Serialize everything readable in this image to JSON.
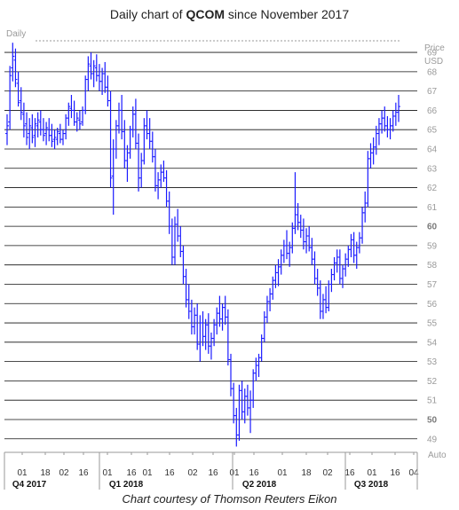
{
  "title": {
    "prefix": "Daily chart of ",
    "ticker": "QCOM",
    "suffix": " since November 2017"
  },
  "caption": "Chart courtesy of Thomson Reuters Eikon",
  "chart_data": {
    "type": "ohlc",
    "periodicity_label": "Daily",
    "price_label": "Price",
    "currency_label": "USD",
    "scale_mode": "Auto",
    "ylim": [
      48.3,
      69.6
    ],
    "y_ticks": [
      49,
      50,
      51,
      52,
      53,
      54,
      55,
      56,
      57,
      58,
      59,
      60,
      61,
      62,
      63,
      64,
      65,
      66,
      67,
      68,
      69
    ],
    "y_bold_ticks": [
      50,
      60
    ],
    "grid": "horizontal",
    "date_ticks": [
      "01",
      "18",
      "02",
      "16",
      "01",
      "16",
      "01",
      "16",
      "02",
      "16",
      "01",
      "16",
      "01",
      "18",
      "02",
      "16",
      "01",
      "16",
      "04"
    ],
    "quarters": [
      "Q4 2017",
      "Q1 2018",
      "Q2 2018",
      "Q3 2018"
    ],
    "bar_color": "#1a1aff",
    "series": [
      {
        "values": [
          [
            64.8,
            65.8,
            64.2,
            65.2
          ],
          [
            65.4,
            68.3,
            65.0,
            67.8
          ],
          [
            68.2,
            69.5,
            67.5,
            68.8
          ],
          [
            68.6,
            69.2,
            67.2,
            67.6
          ],
          [
            67.4,
            68.0,
            66.2,
            66.4
          ],
          [
            66.5,
            67.2,
            65.5,
            65.9
          ],
          [
            65.8,
            66.4,
            64.6,
            65.2
          ],
          [
            65.3,
            65.9,
            64.2,
            64.6
          ],
          [
            64.8,
            65.6,
            64.0,
            65.2
          ],
          [
            65.1,
            65.8,
            64.3,
            64.6
          ],
          [
            64.7,
            65.6,
            64.1,
            65.3
          ],
          [
            65.2,
            65.9,
            64.6,
            65.5
          ],
          [
            65.4,
            66.0,
            64.7,
            65.0
          ],
          [
            65.0,
            65.6,
            64.4,
            64.7
          ],
          [
            64.8,
            65.4,
            64.2,
            65.1
          ],
          [
            65.0,
            65.6,
            64.4,
            64.7
          ],
          [
            64.7,
            65.3,
            64.1,
            64.4
          ],
          [
            64.5,
            65.0,
            64.0,
            64.6
          ],
          [
            64.5,
            65.1,
            64.2,
            64.9
          ],
          [
            64.8,
            65.3,
            64.3,
            64.5
          ],
          [
            64.5,
            65.0,
            64.2,
            64.8
          ],
          [
            64.8,
            65.8,
            64.5,
            65.6
          ],
          [
            65.6,
            66.4,
            65.2,
            66.2
          ],
          [
            66.1,
            66.8,
            65.6,
            66.0
          ],
          [
            66.0,
            66.5,
            65.2,
            65.4
          ],
          [
            65.4,
            65.9,
            64.9,
            65.6
          ],
          [
            65.5,
            66.0,
            65.0,
            65.3
          ],
          [
            65.4,
            66.2,
            65.2,
            66.0
          ],
          [
            66.0,
            67.8,
            65.8,
            67.6
          ],
          [
            67.6,
            68.8,
            67.0,
            68.4
          ],
          [
            68.3,
            69.0,
            67.6,
            67.9
          ],
          [
            67.9,
            68.6,
            67.2,
            68.3
          ],
          [
            68.2,
            68.9,
            67.5,
            67.8
          ],
          [
            67.8,
            68.4,
            67.0,
            67.5
          ],
          [
            67.5,
            68.2,
            66.8,
            67.9
          ],
          [
            67.9,
            68.5,
            66.9,
            67.2
          ],
          [
            67.2,
            67.8,
            66.2,
            66.5
          ],
          [
            66.5,
            67.0,
            62.0,
            62.5
          ],
          [
            62.6,
            64.5,
            60.6,
            64.0
          ],
          [
            64.0,
            65.5,
            63.5,
            65.2
          ],
          [
            65.2,
            66.4,
            64.8,
            66.0
          ],
          [
            66.0,
            66.8,
            64.5,
            64.9
          ],
          [
            64.9,
            65.5,
            63.0,
            63.4
          ],
          [
            63.4,
            64.2,
            62.3,
            63.8
          ],
          [
            63.8,
            65.2,
            63.5,
            65.0
          ],
          [
            65.0,
            66.2,
            64.6,
            65.8
          ],
          [
            65.8,
            66.6,
            64.0,
            64.3
          ],
          [
            64.3,
            64.8,
            61.8,
            62.5
          ],
          [
            62.5,
            63.8,
            62.0,
            63.4
          ],
          [
            63.4,
            65.6,
            63.2,
            65.2
          ],
          [
            65.2,
            66.0,
            64.5,
            64.8
          ],
          [
            64.8,
            65.6,
            64.0,
            64.4
          ],
          [
            64.4,
            64.9,
            63.3,
            63.6
          ],
          [
            63.6,
            64.0,
            61.8,
            62.1
          ],
          [
            62.1,
            62.8,
            61.4,
            62.4
          ],
          [
            62.4,
            63.2,
            62.0,
            62.8
          ],
          [
            62.8,
            63.4,
            62.3,
            62.5
          ],
          [
            62.5,
            62.9,
            61.0,
            61.3
          ],
          [
            61.3,
            61.8,
            59.6,
            60.0
          ],
          [
            60.0,
            60.4,
            58.0,
            58.4
          ],
          [
            58.4,
            60.5,
            58.0,
            60.1
          ],
          [
            60.1,
            60.9,
            59.2,
            59.5
          ],
          [
            59.5,
            60.0,
            58.4,
            58.7
          ],
          [
            58.7,
            59.0,
            57.0,
            57.4
          ],
          [
            57.4,
            57.8,
            55.8,
            56.2
          ],
          [
            56.2,
            57.0,
            55.2,
            55.6
          ],
          [
            55.6,
            56.2,
            54.4,
            54.8
          ],
          [
            54.8,
            55.8,
            54.4,
            55.4
          ],
          [
            55.4,
            56.0,
            53.6,
            53.9
          ],
          [
            53.9,
            55.4,
            53.0,
            55.0
          ],
          [
            55.0,
            55.6,
            53.8,
            54.3
          ],
          [
            54.3,
            55.2,
            53.6,
            54.9
          ],
          [
            54.9,
            55.5,
            53.4,
            53.8
          ],
          [
            53.8,
            54.5,
            53.1,
            54.2
          ],
          [
            54.2,
            55.2,
            53.8,
            54.9
          ],
          [
            54.9,
            55.8,
            54.4,
            55.5
          ],
          [
            55.5,
            56.4,
            54.8,
            55.2
          ],
          [
            55.2,
            56.0,
            54.6,
            55.8
          ],
          [
            55.8,
            56.4,
            54.9,
            55.3
          ],
          [
            55.3,
            55.7,
            52.8,
            53.1
          ],
          [
            53.1,
            53.4,
            51.2,
            51.6
          ],
          [
            51.6,
            51.9,
            49.8,
            50.2
          ],
          [
            50.2,
            50.6,
            48.6,
            49.2
          ],
          [
            49.2,
            51.8,
            48.9,
            51.5
          ],
          [
            51.5,
            52.0,
            50.0,
            50.4
          ],
          [
            50.4,
            51.6,
            49.8,
            51.2
          ],
          [
            51.2,
            51.8,
            50.2,
            50.6
          ],
          [
            50.6,
            51.5,
            49.3,
            51.0
          ],
          [
            51.0,
            52.6,
            50.6,
            52.4
          ],
          [
            52.4,
            53.2,
            52.0,
            52.8
          ],
          [
            52.8,
            53.4,
            52.2,
            53.2
          ],
          [
            53.2,
            54.4,
            53.0,
            54.2
          ],
          [
            54.2,
            55.6,
            54.0,
            55.3
          ],
          [
            55.3,
            56.4,
            55.0,
            56.1
          ],
          [
            56.1,
            56.8,
            55.6,
            56.5
          ],
          [
            56.5,
            57.4,
            56.2,
            57.2
          ],
          [
            57.2,
            58.0,
            56.8,
            57.6
          ],
          [
            57.6,
            58.3,
            56.9,
            57.9
          ],
          [
            57.9,
            58.8,
            57.5,
            58.5
          ],
          [
            58.5,
            59.3,
            58.1,
            59.0
          ],
          [
            59.0,
            59.8,
            58.3,
            58.6
          ],
          [
            58.6,
            59.2,
            57.9,
            58.9
          ],
          [
            58.9,
            60.2,
            58.6,
            59.9
          ],
          [
            59.9,
            62.8,
            59.6,
            60.6
          ],
          [
            60.6,
            61.2,
            59.8,
            60.2
          ],
          [
            60.2,
            60.6,
            59.4,
            59.8
          ],
          [
            59.8,
            60.4,
            58.8,
            59.2
          ],
          [
            59.2,
            59.9,
            58.6,
            59.5
          ],
          [
            59.5,
            60.0,
            58.7,
            58.9
          ],
          [
            58.9,
            59.4,
            58.0,
            58.3
          ],
          [
            58.3,
            58.7,
            57.0,
            57.3
          ],
          [
            57.3,
            57.8,
            56.4,
            56.8
          ],
          [
            56.8,
            57.2,
            55.2,
            55.6
          ],
          [
            55.6,
            56.5,
            55.2,
            56.2
          ],
          [
            56.2,
            56.9,
            55.5,
            55.8
          ],
          [
            55.8,
            57.2,
            55.6,
            57.0
          ],
          [
            57.0,
            57.8,
            56.6,
            57.5
          ],
          [
            57.5,
            58.4,
            57.2,
            58.1
          ],
          [
            58.1,
            58.8,
            57.6,
            58.4
          ],
          [
            58.4,
            58.8,
            57.0,
            57.3
          ],
          [
            57.3,
            58.0,
            56.8,
            57.8
          ],
          [
            57.8,
            58.6,
            57.4,
            58.3
          ],
          [
            58.3,
            59.0,
            57.9,
            58.8
          ],
          [
            58.8,
            59.6,
            58.4,
            59.3
          ],
          [
            59.3,
            59.7,
            58.1,
            58.5
          ],
          [
            58.5,
            59.2,
            57.8,
            58.9
          ],
          [
            58.9,
            59.7,
            58.6,
            59.4
          ],
          [
            59.4,
            61.0,
            59.1,
            60.7
          ],
          [
            60.7,
            61.8,
            60.2,
            61.2
          ],
          [
            61.2,
            63.9,
            61.0,
            63.5
          ],
          [
            63.5,
            64.3,
            63.0,
            63.8
          ],
          [
            63.8,
            64.6,
            63.2,
            64.1
          ],
          [
            64.1,
            65.2,
            63.7,
            64.8
          ],
          [
            64.8,
            65.6,
            64.2,
            65.3
          ],
          [
            65.3,
            66.0,
            64.8,
            65.6
          ],
          [
            65.6,
            66.2,
            64.9,
            65.2
          ],
          [
            65.2,
            65.7,
            64.6,
            65.0
          ],
          [
            65.0,
            65.6,
            64.5,
            65.2
          ],
          [
            65.2,
            66.0,
            64.9,
            65.7
          ],
          [
            65.7,
            66.4,
            65.2,
            65.9
          ],
          [
            65.9,
            66.8,
            65.4,
            66.2
          ]
        ]
      }
    ]
  }
}
